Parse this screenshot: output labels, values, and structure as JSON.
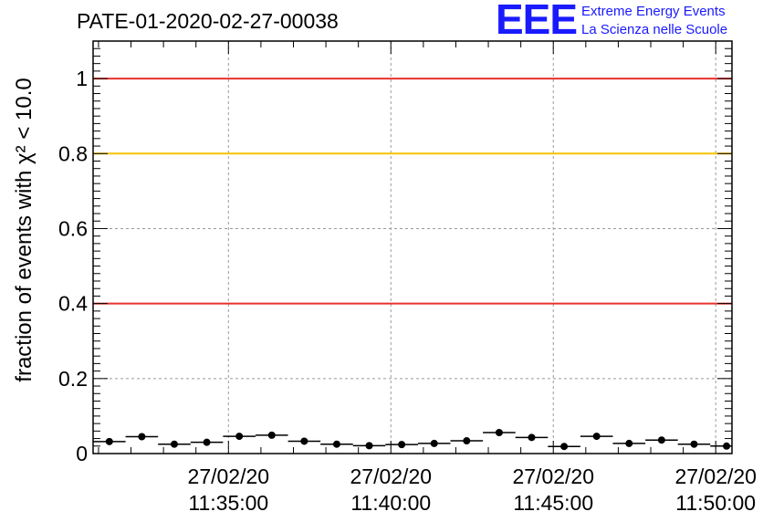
{
  "chart_data": {
    "type": "scatter",
    "title": "PATE-01-2020-02-27-00038",
    "ylabel": "fraction of events with χ² < 10.0",
    "xlabel": "",
    "ylim": [
      0,
      1.1
    ],
    "yticks": [
      0,
      0.2,
      0.4,
      0.6,
      0.8,
      1
    ],
    "ytick_labels": [
      "0",
      "0.2",
      "0.4",
      "0.6",
      "0.8",
      "1"
    ],
    "xticks": [
      {
        "date": "27/02/20",
        "time": "11:35:00"
      },
      {
        "date": "27/02/20",
        "time": "11:40:00"
      },
      {
        "date": "27/02/20",
        "time": "11:45:00"
      },
      {
        "date": "27/02/20",
        "time": "11:50:00"
      }
    ],
    "xlim": [
      "11:30:50",
      "11:50:30"
    ],
    "grid": true,
    "reference_lines": [
      {
        "y": 1.0,
        "color": "#e8322b"
      },
      {
        "y": 0.8,
        "color": "#f5c400"
      },
      {
        "y": 0.4,
        "color": "#e8322b"
      }
    ],
    "marker_color": "#000000",
    "points": [
      {
        "x": "11:31:20",
        "y": 0.032
      },
      {
        "x": "11:32:20",
        "y": 0.045
      },
      {
        "x": "11:33:20",
        "y": 0.025
      },
      {
        "x": "11:34:20",
        "y": 0.03
      },
      {
        "x": "11:35:20",
        "y": 0.046
      },
      {
        "x": "11:36:20",
        "y": 0.049
      },
      {
        "x": "11:37:20",
        "y": 0.033
      },
      {
        "x": "11:38:20",
        "y": 0.025
      },
      {
        "x": "11:39:20",
        "y": 0.021
      },
      {
        "x": "11:40:20",
        "y": 0.024
      },
      {
        "x": "11:41:20",
        "y": 0.027
      },
      {
        "x": "11:42:20",
        "y": 0.034
      },
      {
        "x": "11:43:20",
        "y": 0.056
      },
      {
        "x": "11:44:20",
        "y": 0.043
      },
      {
        "x": "11:45:20",
        "y": 0.019
      },
      {
        "x": "11:46:20",
        "y": 0.046
      },
      {
        "x": "11:47:20",
        "y": 0.027
      },
      {
        "x": "11:48:20",
        "y": 0.036
      },
      {
        "x": "11:49:20",
        "y": 0.025
      },
      {
        "x": "11:50:20",
        "y": 0.02
      }
    ]
  },
  "logo": {
    "mark": "EEE",
    "line1": "Extreme Energy Events",
    "line2": "La Scienza nelle Scuole"
  }
}
